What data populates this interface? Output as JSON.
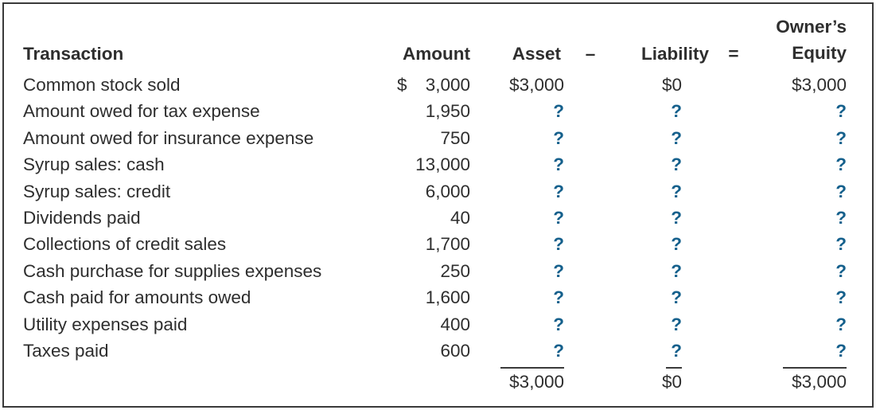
{
  "table": {
    "headers": {
      "transaction": "Transaction",
      "amount": "Amount",
      "asset": "Asset",
      "minus": "–",
      "liability": "Liability",
      "equals": "=",
      "owners_equity_line1": "Owner’s",
      "owners_equity_line2": "Equity"
    },
    "rows": [
      {
        "label": "Common stock sold",
        "dollar": "$",
        "amount": "3,000",
        "asset": "$3,000",
        "liability": "$0",
        "equity": "$3,000"
      },
      {
        "label": "Amount owed for tax expense",
        "dollar": "",
        "amount": "1,950",
        "asset": "?",
        "liability": "?",
        "equity": "?"
      },
      {
        "label": "Amount owed for insurance expense",
        "dollar": "",
        "amount": "750",
        "asset": "?",
        "liability": "?",
        "equity": "?"
      },
      {
        "label": "Syrup sales: cash",
        "dollar": "",
        "amount": "13,000",
        "asset": "?",
        "liability": "?",
        "equity": "?"
      },
      {
        "label": "Syrup sales: credit",
        "dollar": "",
        "amount": "6,000",
        "asset": "?",
        "liability": "?",
        "equity": "?"
      },
      {
        "label": "Dividends paid",
        "dollar": "",
        "amount": "40",
        "asset": "?",
        "liability": "?",
        "equity": "?"
      },
      {
        "label": "Collections of credit sales",
        "dollar": "",
        "amount": "1,700",
        "asset": "?",
        "liability": "?",
        "equity": "?"
      },
      {
        "label": "Cash purchase for supplies expenses",
        "dollar": "",
        "amount": "250",
        "asset": "?",
        "liability": "?",
        "equity": "?"
      },
      {
        "label": "Cash paid for amounts owed",
        "dollar": "",
        "amount": "1,600",
        "asset": "?",
        "liability": "?",
        "equity": "?"
      },
      {
        "label": "Utility expenses paid",
        "dollar": "",
        "amount": "400",
        "asset": "?",
        "liability": "?",
        "equity": "?"
      },
      {
        "label": "Taxes paid",
        "dollar": "",
        "amount": "600",
        "asset": "?",
        "liability": "?",
        "equity": "?"
      }
    ],
    "totals": {
      "asset": "$3,000",
      "liability": "$0",
      "equity": "$3,000"
    }
  },
  "colors": {
    "question_mark": "#15608c",
    "text": "#2e2e2e",
    "frame_border": "#3a3a3a"
  }
}
